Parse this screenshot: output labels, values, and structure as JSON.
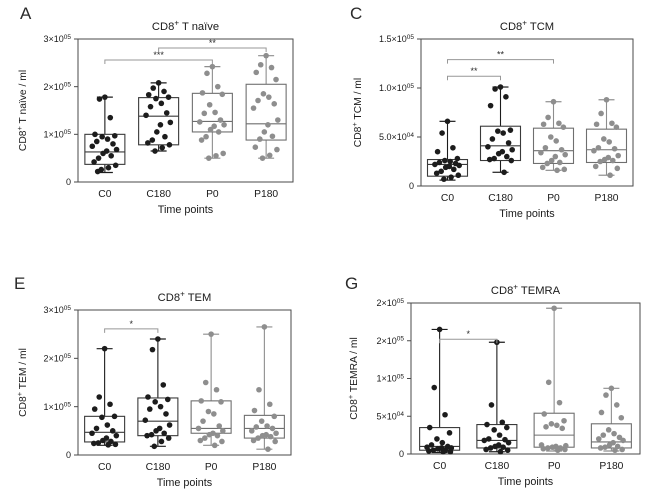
{
  "colors": {
    "background": "#ffffff",
    "axis": "#4a4a4a",
    "text": "#1a1a1a",
    "bracket_line": "#979797",
    "bracket_text": "#2a2a2a",
    "series": {
      "black": "#1c1c1c",
      "gray": "#8e8e8e"
    },
    "box_stroke": {
      "black": "#3a3a3a",
      "gray": "#6f6f6f"
    }
  },
  "chart_data": [
    {
      "panel": "A",
      "type": "box",
      "title": "CD8^+ T naïve",
      "ylabel": "CD8^+ T naïve / ml",
      "xlabel": "Time points",
      "ylim": [
        0,
        300000
      ],
      "yticks": [
        {
          "v": 0,
          "label": "0"
        },
        {
          "v": 100000,
          "label": "1×10^05"
        },
        {
          "v": 200000,
          "label": "2×10^05"
        },
        {
          "v": 300000,
          "label": "3×10^05"
        }
      ],
      "groups": [
        {
          "name": "C0",
          "color": "black",
          "box": {
            "lo": 20000,
            "q1": 37000,
            "med": 63000,
            "q3": 100000,
            "hi": 178000
          },
          "points": [
            178000,
            174000,
            135000,
            100000,
            97000,
            95000,
            90000,
            85000,
            80000,
            75000,
            68000,
            65000,
            60000,
            55000,
            50000,
            42000,
            35000,
            30000,
            26000,
            22000
          ]
        },
        {
          "name": "C180",
          "color": "black",
          "box": {
            "lo": 65000,
            "q1": 78000,
            "med": 138000,
            "q3": 177000,
            "hi": 208000
          },
          "points": [
            208000,
            197000,
            190000,
            183000,
            178000,
            175000,
            165000,
            158000,
            145000,
            140000,
            125000,
            120000,
            105000,
            95000,
            88000,
            82000,
            78000,
            72000,
            65000
          ]
        },
        {
          "name": "P0",
          "color": "gray",
          "box": {
            "lo": 50000,
            "q1": 105000,
            "med": 127000,
            "q3": 186000,
            "hi": 242000
          },
          "points": [
            242000,
            228000,
            200000,
            187000,
            184000,
            162000,
            146000,
            144000,
            130000,
            126000,
            120000,
            117000,
            110000,
            105000,
            95000,
            88000,
            60000,
            55000,
            50000
          ]
        },
        {
          "name": "P180",
          "color": "gray",
          "box": {
            "lo": 50000,
            "q1": 88000,
            "med": 122000,
            "q3": 205000,
            "hi": 265000
          },
          "points": [
            265000,
            246000,
            240000,
            230000,
            215000,
            185000,
            178000,
            171000,
            164000,
            155000,
            130000,
            120000,
            105000,
            96000,
            90000,
            73000,
            68000,
            56000,
            50000
          ]
        }
      ],
      "brackets": [
        {
          "from": 0,
          "to": 2,
          "y": 256000,
          "label": "***"
        },
        {
          "from": 1,
          "to": 3,
          "y": 281000,
          "label": "**"
        }
      ]
    },
    {
      "panel": "C",
      "type": "box",
      "title": "CD8^+ TCM",
      "ylabel": "CD8^+ TCM / ml",
      "xlabel": "Time points",
      "ylim": [
        0,
        150000
      ],
      "yticks": [
        {
          "v": 0,
          "label": "0"
        },
        {
          "v": 50000,
          "label": "5.0×10^04"
        },
        {
          "v": 100000,
          "label": "1.0×10^05"
        },
        {
          "v": 150000,
          "label": "1.5×10^05"
        }
      ],
      "groups": [
        {
          "name": "C0",
          "color": "black",
          "box": {
            "lo": 6000,
            "q1": 10000,
            "med": 22000,
            "q3": 27000,
            "hi": 66000
          },
          "points": [
            66000,
            54000,
            39000,
            35000,
            28000,
            26000,
            25000,
            24000,
            23000,
            22000,
            21000,
            20000,
            19000,
            17000,
            15000,
            13000,
            11000,
            9000,
            7000
          ]
        },
        {
          "name": "C180",
          "color": "black",
          "box": {
            "lo": 14000,
            "q1": 26000,
            "med": 41000,
            "q3": 61000,
            "hi": 101000
          },
          "points": [
            101000,
            99000,
            91000,
            82000,
            57000,
            56000,
            54000,
            48000,
            44000,
            40000,
            37000,
            35000,
            33000,
            30000,
            28000,
            27000,
            26000,
            14000
          ]
        },
        {
          "name": "P0",
          "color": "gray",
          "box": {
            "lo": 16000,
            "q1": 23000,
            "med": 36000,
            "q3": 59000,
            "hi": 86000
          },
          "points": [
            86000,
            70000,
            64000,
            63000,
            60000,
            50000,
            46000,
            39000,
            37000,
            34000,
            32000,
            30000,
            26000,
            24000,
            23000,
            19000,
            17000,
            16000
          ]
        },
        {
          "name": "P180",
          "color": "gray",
          "box": {
            "lo": 11000,
            "q1": 24000,
            "med": 37000,
            "q3": 58000,
            "hi": 88000
          },
          "points": [
            88000,
            74000,
            64000,
            63000,
            60000,
            48000,
            45000,
            39000,
            38000,
            36000,
            31000,
            29000,
            27000,
            26000,
            25000,
            20000,
            18000,
            11000
          ]
        }
      ],
      "brackets": [
        {
          "from": 0,
          "to": 1,
          "y": 112000,
          "label": "**"
        },
        {
          "from": 0,
          "to": 2,
          "y": 129000,
          "label": "**"
        }
      ]
    },
    {
      "panel": "E",
      "type": "box",
      "title": "CD8^+ TEM",
      "ylabel": "CD8^+ TEM / ml",
      "xlabel": "Time points",
      "ylim": [
        0,
        300000
      ],
      "yticks": [
        {
          "v": 0,
          "label": "0"
        },
        {
          "v": 100000,
          "label": "1×10^05"
        },
        {
          "v": 200000,
          "label": "2×10^05"
        },
        {
          "v": 300000,
          "label": "3×10^05"
        }
      ],
      "groups": [
        {
          "name": "C0",
          "color": "black",
          "box": {
            "lo": 20000,
            "q1": 27000,
            "med": 47000,
            "q3": 80000,
            "hi": 220000
          },
          "points": [
            220000,
            120000,
            105000,
            95000,
            80000,
            78000,
            62000,
            55000,
            50000,
            45000,
            40000,
            35000,
            30000,
            28000,
            25000,
            24000,
            22000,
            21000
          ]
        },
        {
          "name": "C180",
          "color": "black",
          "box": {
            "lo": 18000,
            "q1": 40000,
            "med": 70000,
            "q3": 118000,
            "hi": 240000
          },
          "points": [
            240000,
            218000,
            145000,
            120000,
            115000,
            110000,
            100000,
            95000,
            85000,
            72000,
            62000,
            55000,
            50000,
            45000,
            42000,
            40000,
            35000,
            28000,
            18000
          ]
        },
        {
          "name": "P0",
          "color": "gray",
          "box": {
            "lo": 20000,
            "q1": 45000,
            "med": 55000,
            "q3": 112000,
            "hi": 250000
          },
          "points": [
            250000,
            150000,
            135000,
            112000,
            110000,
            90000,
            85000,
            70000,
            60000,
            55000,
            50000,
            45000,
            42000,
            40000,
            35000,
            30000,
            28000,
            20000
          ]
        },
        {
          "name": "P180",
          "color": "gray",
          "box": {
            "lo": 12000,
            "q1": 35000,
            "med": 55000,
            "q3": 82000,
            "hi": 265000
          },
          "points": [
            265000,
            135000,
            105000,
            92000,
            80000,
            70000,
            60000,
            58000,
            55000,
            50000,
            45000,
            42000,
            40000,
            38000,
            35000,
            30000,
            28000,
            12000
          ]
        }
      ],
      "brackets": [
        {
          "from": 0,
          "to": 1,
          "y": 261000,
          "label": "*"
        }
      ]
    },
    {
      "panel": "G",
      "type": "box",
      "title": "CD8^+ TEMRA",
      "ylabel": "CD8^+ TEMRA / ml",
      "xlabel": "Time points",
      "ylim": [
        0,
        200000
      ],
      "yticks": [
        {
          "v": 0,
          "label": "0"
        },
        {
          "v": 50000,
          "label": "5×10^04"
        },
        {
          "v": 100000,
          "label": "1×10^05"
        },
        {
          "v": 150000,
          "label": "2×10^05"
        },
        {
          "v": 200000,
          "label": "2×10^05"
        }
      ],
      "groups": [
        {
          "name": "C0",
          "color": "black",
          "box": {
            "lo": 2000,
            "q1": 5000,
            "med": 10000,
            "q3": 35000,
            "hi": 165000
          },
          "points": [
            165000,
            88000,
            52000,
            35000,
            28000,
            20000,
            15000,
            12000,
            10000,
            9000,
            8000,
            8000,
            7000,
            6000,
            5000,
            4000,
            3000,
            3000
          ]
        },
        {
          "name": "C180",
          "color": "black",
          "box": {
            "lo": 3000,
            "q1": 8000,
            "med": 18000,
            "q3": 39000,
            "hi": 148000
          },
          "points": [
            148000,
            65000,
            42000,
            39000,
            35000,
            32000,
            25000,
            20000,
            19000,
            18000,
            15000,
            12000,
            10000,
            9000,
            8000,
            6000,
            5000,
            3000
          ]
        },
        {
          "name": "P0",
          "color": "gray",
          "box": {
            "lo": 4000,
            "q1": 9000,
            "med": 25000,
            "q3": 54000,
            "hi": 193000
          },
          "points": [
            193000,
            95000,
            68000,
            53000,
            44000,
            40000,
            38000,
            36000,
            34000,
            12000,
            11000,
            10000,
            9000,
            8000,
            8000,
            7000,
            6000,
            5000
          ]
        },
        {
          "name": "P180",
          "color": "gray",
          "box": {
            "lo": 4000,
            "q1": 8000,
            "med": 16000,
            "q3": 40000,
            "hi": 87000
          },
          "points": [
            87000,
            78000,
            65000,
            55000,
            48000,
            32000,
            27000,
            25000,
            22000,
            20000,
            18000,
            15000,
            12000,
            10000,
            9000,
            8000,
            6000,
            5000
          ]
        }
      ],
      "brackets": [
        {
          "from": 0,
          "to": 1,
          "y": 152000,
          "label": "*"
        }
      ]
    }
  ]
}
